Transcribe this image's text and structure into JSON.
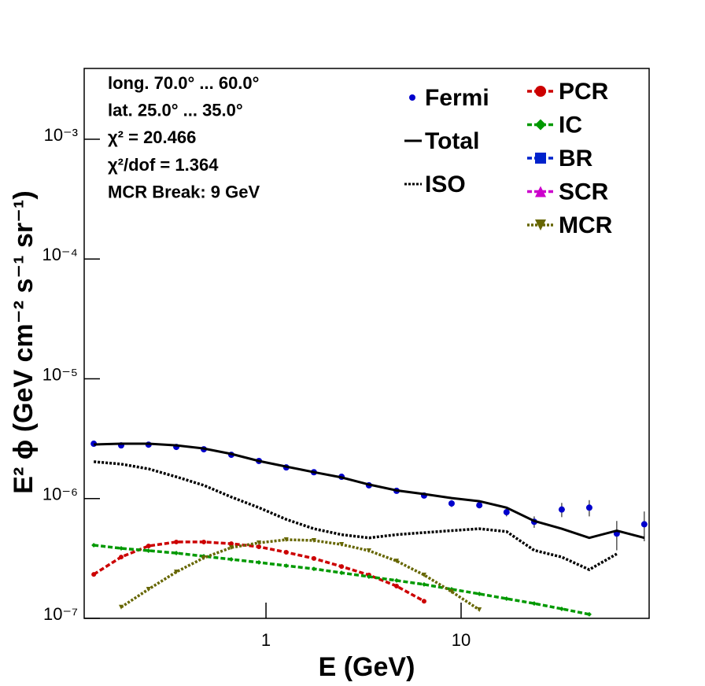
{
  "chart_data": {
    "type": "line",
    "x_label": "E (GeV)",
    "y_label": "E² ϕ (GeV cm⁻² s⁻¹ sr⁻¹)",
    "annotations": [
      "long. 70.0° ... 60.0°",
      "lat. 25.0° ... 35.0°",
      "χ² = 20.466",
      "χ²/dof = 1.364",
      "MCR Break:  9 GeV"
    ],
    "log_x": true,
    "log_y": true,
    "xlim": [
      0.117,
      92
    ],
    "ylim": [
      1e-07,
      0.0039
    ],
    "xticks": [
      1,
      10
    ],
    "yticks": [
      {
        "value": 1e-07,
        "label": "10⁻⁷"
      },
      {
        "value": 1e-06,
        "label": "10⁻⁶"
      },
      {
        "value": 1e-05,
        "label": "10⁻⁵"
      },
      {
        "value": 0.0001,
        "label": "10⁻⁴"
      },
      {
        "value": 0.001,
        "label": "10⁻³"
      }
    ],
    "x": [
      0.131,
      0.181,
      0.25,
      0.347,
      0.48,
      0.664,
      0.92,
      1.27,
      1.76,
      2.44,
      3.37,
      4.67,
      6.46,
      8.94,
      12.4,
      17.1,
      23.7,
      32.8,
      45.4,
      62.8,
      86.9
    ],
    "series": [
      {
        "name": "Fermi",
        "color": "#0000cc",
        "style": "points",
        "values": [
          2.87e-06,
          2.78e-06,
          2.82e-06,
          2.7e-06,
          2.58e-06,
          2.32e-06,
          2.06e-06,
          1.82e-06,
          1.66e-06,
          1.52e-06,
          1.29e-06,
          1.16e-06,
          1.06e-06,
          9.1e-07,
          8.8e-07,
          7.7e-07,
          6.4e-07,
          8.1e-07,
          8.4e-07,
          5.1e-07,
          6.1e-07
        ],
        "errors": [
          5e-08,
          5e-08,
          5e-08,
          5e-08,
          5e-08,
          5e-08,
          5e-08,
          5e-08,
          5e-08,
          5e-08,
          5e-08,
          5e-08,
          5e-08,
          6e-08,
          5e-08,
          6e-08,
          7e-08,
          1.1e-07,
          1.3e-07,
          1.4e-07,
          1.7e-07
        ]
      },
      {
        "name": "Total",
        "color": "#000000",
        "style": "solid",
        "values": [
          2.83e-06,
          2.87e-06,
          2.87e-06,
          2.78e-06,
          2.62e-06,
          2.36e-06,
          2.06e-06,
          1.85e-06,
          1.66e-06,
          1.5e-06,
          1.31e-06,
          1.17e-06,
          1.09e-06,
          1.01e-06,
          9.5e-07,
          8.4e-07,
          6.5e-07,
          5.6e-07,
          4.7e-07,
          5.4e-07,
          4.7e-07
        ]
      },
      {
        "name": "ISO",
        "color": "#000000",
        "style": "dotted",
        "values": [
          2.03e-06,
          1.94e-06,
          1.77e-06,
          1.52e-06,
          1.29e-06,
          1.03e-06,
          8.4e-07,
          6.7e-07,
          5.6e-07,
          5e-07,
          4.7e-07,
          5e-07,
          5.2e-07,
          5.4e-07,
          5.6e-07,
          5.3e-07,
          3.7e-07,
          3.25e-07,
          2.55e-07,
          3.45e-07,
          null
        ]
      },
      {
        "name": "PCR",
        "color": "#cc0000",
        "style": "dashed",
        "marker": "circle",
        "values": [
          2.33e-07,
          3.25e-07,
          4.02e-07,
          4.34e-07,
          4.34e-07,
          4.2e-07,
          3.96e-07,
          3.56e-07,
          3.16e-07,
          2.71e-07,
          2.3e-07,
          1.86e-07,
          1.39e-07,
          null,
          null,
          null,
          null,
          null,
          null,
          null,
          null
        ]
      },
      {
        "name": "IC",
        "color": "#009900",
        "style": "dashed",
        "marker": "diamond",
        "values": [
          4.08e-07,
          3.84e-07,
          3.67e-07,
          3.51e-07,
          3.3e-07,
          3.11e-07,
          2.93e-07,
          2.75e-07,
          2.59e-07,
          2.4e-07,
          2.23e-07,
          2.07e-07,
          1.92e-07,
          1.75e-07,
          1.6e-07,
          1.46e-07,
          1.33e-07,
          1.2e-07,
          1.08e-07,
          null,
          null
        ]
      },
      {
        "name": "BR",
        "color": "#0022cc",
        "style": "dashed",
        "marker": "square",
        "values": [
          null,
          null,
          null,
          null,
          null,
          null,
          null,
          null,
          null,
          null,
          null,
          null,
          null,
          null,
          null,
          null,
          null,
          null,
          null,
          null,
          null
        ]
      },
      {
        "name": "SCR",
        "color": "#cc00cc",
        "style": "dashed",
        "marker": "triangle",
        "values": [
          null,
          null,
          null,
          null,
          null,
          null,
          null,
          null,
          null,
          null,
          null,
          null,
          null,
          null,
          null,
          null,
          null,
          null,
          null,
          null,
          null
        ]
      },
      {
        "name": "MCR",
        "color": "#666600",
        "style": "dotted",
        "marker": "triangle-down",
        "values": [
          null,
          1.24e-07,
          1.75e-07,
          2.44e-07,
          3.2e-07,
          3.9e-07,
          4.27e-07,
          4.54e-07,
          4.47e-07,
          4.14e-07,
          3.67e-07,
          3.01e-07,
          2.3e-07,
          1.67e-07,
          1.18e-07,
          null,
          null,
          null,
          null,
          null,
          null
        ]
      }
    ]
  }
}
